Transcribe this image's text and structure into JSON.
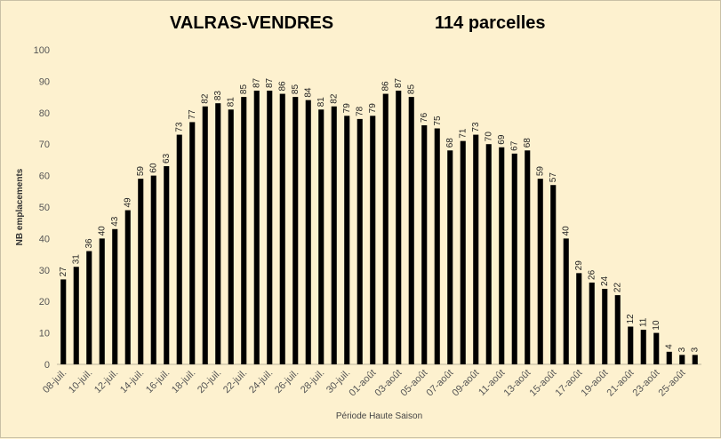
{
  "chart_data": {
    "type": "bar",
    "title": "VALRAS-VENDRES",
    "subtitle": "114 parcelles",
    "xlabel": "Période Haute Saison",
    "ylabel": "NB emplacements",
    "ylim": [
      0,
      100
    ],
    "yticks": [
      0,
      10,
      20,
      30,
      40,
      50,
      60,
      70,
      80,
      90,
      100
    ],
    "grid": false,
    "legend": "none",
    "bar_color": "#000000",
    "x_tick_labels": [
      "08-juil.",
      "10-juil.",
      "12-juil.",
      "14-juil.",
      "16-juil.",
      "18-juil.",
      "20-juil.",
      "22-juil.",
      "24-juil.",
      "26-juil.",
      "28-juil.",
      "30-juil.",
      "01-août",
      "03-août",
      "05-août",
      "07-août",
      "09-août",
      "11-août",
      "13-août",
      "15-août",
      "17-août",
      "19-août",
      "21-août",
      "23-août",
      "25-août"
    ],
    "values": [
      27,
      31,
      36,
      40,
      43,
      49,
      59,
      60,
      63,
      73,
      77,
      82,
      83,
      81,
      85,
      87,
      87,
      86,
      85,
      84,
      81,
      82,
      79,
      78,
      79,
      86,
      87,
      85,
      76,
      75,
      68,
      71,
      73,
      70,
      69,
      67,
      68,
      59,
      57,
      40,
      29,
      26,
      24,
      22,
      12,
      11,
      10,
      4,
      3,
      3
    ]
  }
}
